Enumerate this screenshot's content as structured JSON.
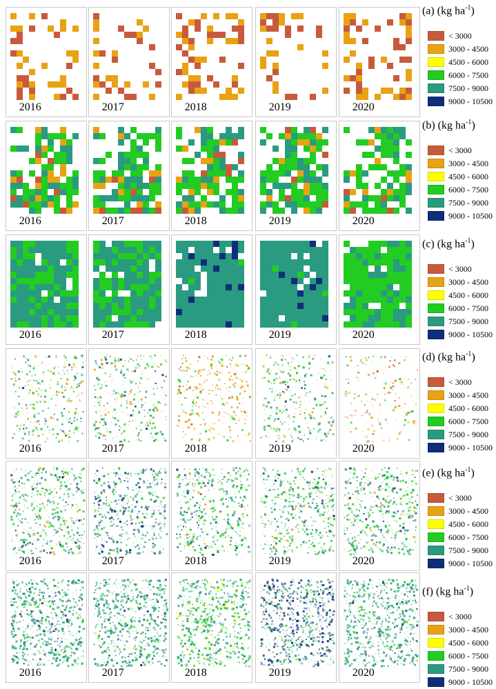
{
  "legend_classes": [
    {
      "label": "< 3000",
      "color": "#c85a3c"
    },
    {
      "label": "3000 - 4500",
      "color": "#e8a214"
    },
    {
      "label": "4500 - 6000",
      "color": "#ffff00"
    },
    {
      "label": "6000 - 7500",
      "color": "#22cc22"
    },
    {
      "label": "7500 - 9000",
      "color": "#2a9a80"
    },
    {
      "label": "9000 - 10500",
      "color": "#0f2e78"
    }
  ],
  "rows": [
    {
      "letter": "(a)",
      "unit_base": "(kg ha",
      "unit_sup": "-1",
      "unit_end": ")",
      "years": [
        "2016",
        "2017",
        "2018",
        "2019",
        "2020"
      ]
    },
    {
      "letter": "(b)",
      "unit_base": "(kg ha",
      "unit_sup": "-1",
      "unit_end": ")",
      "years": [
        "2016",
        "2017",
        "2018",
        "2019",
        "2020"
      ]
    },
    {
      "letter": "(c)",
      "unit_base": "(kg ha",
      "unit_sup": "-1",
      "unit_end": ")",
      "years": [
        "2016",
        "2017",
        "2018",
        "2019",
        "2020"
      ]
    },
    {
      "letter": "(d)",
      "unit_base": "(kg ha",
      "unit_sup": "-1",
      "unit_end": ")",
      "years": [
        "2016",
        "2017",
        "2018",
        "2019",
        "2020"
      ]
    },
    {
      "letter": "(e)",
      "unit_base": "(kg ha",
      "unit_sup": "-1",
      "unit_end": ")",
      "years": [
        "2016",
        "2017",
        "2018",
        "2019",
        "2020"
      ]
    },
    {
      "letter": "(f)",
      "unit_base": "(kg ha",
      "unit_sup": "-1",
      "unit_end": ")",
      "years": [
        "2016",
        "2017",
        "2018",
        "2019",
        "2020"
      ]
    }
  ]
}
